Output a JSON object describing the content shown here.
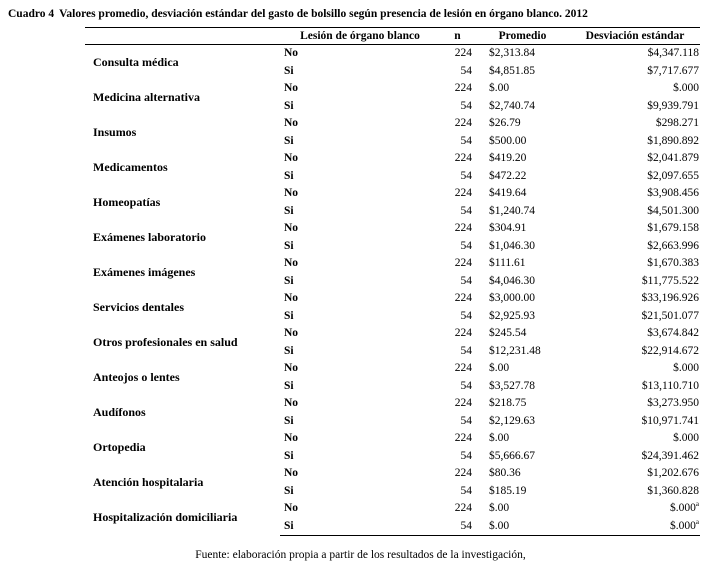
{
  "caption": {
    "label": "Cuadro 4",
    "text": "Valores promedio, desviación estándar del gasto de bolsillo según presencia de lesión en órgano blanco.  2012"
  },
  "table": {
    "col_headers": {
      "category": "",
      "lesion": "Lesión de órgano blanco",
      "n": "n",
      "promedio": "Promedio",
      "desviacion": "Desviación estándar"
    },
    "rows": [
      {
        "category": "Consulta médica",
        "entries": [
          {
            "lesion": "No",
            "n": "224",
            "promedio": "$2,313.84",
            "desviacion": "$4,347.118"
          },
          {
            "lesion": "Si",
            "n": "54",
            "promedio": "$4,851.85",
            "desviacion": "$7,717.677"
          }
        ]
      },
      {
        "category": "Medicina alternativa",
        "entries": [
          {
            "lesion": "No",
            "n": "224",
            "promedio": "$.00",
            "desviacion": "$.000"
          },
          {
            "lesion": "Si",
            "n": "54",
            "promedio": "$2,740.74",
            "desviacion": "$9,939.791"
          }
        ]
      },
      {
        "category": "Insumos",
        "entries": [
          {
            "lesion": "No",
            "n": "224",
            "promedio": "$26.79",
            "desviacion": "$298.271"
          },
          {
            "lesion": "Si",
            "n": "54",
            "promedio": "$500.00",
            "desviacion": "$1,890.892"
          }
        ]
      },
      {
        "category": "Medicamentos",
        "entries": [
          {
            "lesion": "No",
            "n": "224",
            "promedio": "$419.20",
            "desviacion": "$2,041.879"
          },
          {
            "lesion": "Si",
            "n": "54",
            "promedio": "$472.22",
            "desviacion": "$2,097.655"
          }
        ]
      },
      {
        "category": "Homeopatías",
        "entries": [
          {
            "lesion": "No",
            "n": "224",
            "promedio": "$419.64",
            "desviacion": "$3,908.456"
          },
          {
            "lesion": "Si",
            "n": "54",
            "promedio": "$1,240.74",
            "desviacion": "$4,501.300"
          }
        ]
      },
      {
        "category": "Exámenes laboratorio",
        "entries": [
          {
            "lesion": "No",
            "n": "224",
            "promedio": "$304.91",
            "desviacion": "$1,679.158"
          },
          {
            "lesion": "Si",
            "n": "54",
            "promedio": "$1,046.30",
            "desviacion": "$2,663.996"
          }
        ]
      },
      {
        "category": "Exámenes imágenes",
        "entries": [
          {
            "lesion": "No",
            "n": "224",
            "promedio": "$111.61",
            "desviacion": "$1,670.383"
          },
          {
            "lesion": "Si",
            "n": "54",
            "promedio": "$4,046.30",
            "desviacion": "$11,775.522"
          }
        ]
      },
      {
        "category": "Servicios dentales",
        "entries": [
          {
            "lesion": "No",
            "n": "224",
            "promedio": "$3,000.00",
            "desviacion": "$33,196.926"
          },
          {
            "lesion": "Si",
            "n": "54",
            "promedio": "$2,925.93",
            "desviacion": "$21,501.077"
          }
        ]
      },
      {
        "category": "Otros profesionales en salud",
        "entries": [
          {
            "lesion": "No",
            "n": "224",
            "promedio": "$245.54",
            "desviacion": "$3,674.842"
          },
          {
            "lesion": "Si",
            "n": "54",
            "promedio": "$12,231.48",
            "desviacion": "$22,914.672"
          }
        ]
      },
      {
        "category": "Anteojos o lentes",
        "entries": [
          {
            "lesion": "No",
            "n": "224",
            "promedio": "$.00",
            "desviacion": "$.000"
          },
          {
            "lesion": "Si",
            "n": "54",
            "promedio": "$3,527.78",
            "desviacion": "$13,110.710"
          }
        ]
      },
      {
        "category": "Audífonos",
        "entries": [
          {
            "lesion": "No",
            "n": "224",
            "promedio": "$218.75",
            "desviacion": "$3,273.950"
          },
          {
            "lesion": "Si",
            "n": "54",
            "promedio": "$2,129.63",
            "desviacion": "$10,971.741"
          }
        ]
      },
      {
        "category": "Ortopedia",
        "entries": [
          {
            "lesion": "No",
            "n": "224",
            "promedio": "$.00",
            "desviacion": "$.000"
          },
          {
            "lesion": "Si",
            "n": "54",
            "promedio": "$5,666.67",
            "desviacion": "$24,391.462"
          }
        ]
      },
      {
        "category": "Atención hospitalaria",
        "entries": [
          {
            "lesion": "No",
            "n": "224",
            "promedio": "$80.36",
            "desviacion": "$1,202.676"
          },
          {
            "lesion": "Si",
            "n": "54",
            "promedio": "$185.19",
            "desviacion": "$1,360.828"
          }
        ]
      },
      {
        "category": "Hospitalización domiciliaria",
        "entries": [
          {
            "lesion": "No",
            "n": "224",
            "promedio": "$.00",
            "desviacion": "$.000",
            "desviacion_sup": "a"
          },
          {
            "lesion": "Si",
            "n": "54",
            "promedio": "$.00",
            "desviacion": "$.000",
            "desviacion_sup": "a"
          }
        ]
      }
    ]
  },
  "footer": "Fuente: elaboración propia a partir de los resultados de la investigación,"
}
